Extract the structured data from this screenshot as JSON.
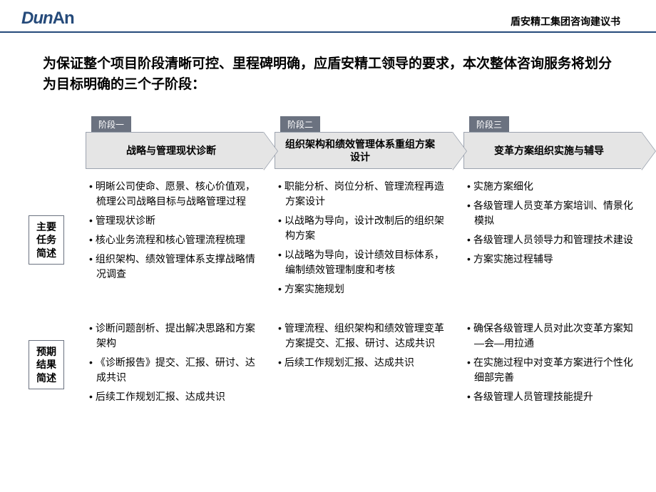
{
  "header": {
    "logo_part1": "Dun",
    "logo_part2": "An",
    "doc_title": "盾安精工集团咨询建议书"
  },
  "main_title": "为保证整个项目阶段清晰可控、里程碑明确，应盾安精工领导的要求，本次整体咨询服务将划分为目标明确的三个子阶段：",
  "phases": [
    {
      "tag": "阶段一",
      "title": "战略与管理现状诊断"
    },
    {
      "tag": "阶段二",
      "title": "组织架构和绩效管理体系重组方案设计"
    },
    {
      "tag": "阶段三",
      "title": "变革方案组织实施与辅导"
    }
  ],
  "row_labels": {
    "tasks": "主要任务简述",
    "results": "预期结果简述"
  },
  "tasks": {
    "phase1": [
      "明晰公司使命、愿景、核心价值观，梳理公司战略目标与战略管理过程",
      "管理现状诊断",
      "核心业务流程和核心管理流程梳理",
      "组织架构、绩效管理体系支撑战略情况调查"
    ],
    "phase2": [
      "职能分析、岗位分析、管理流程再造方案设计",
      "以战略为导向，设计改制后的组织架构方案",
      "以战略为导向，设计绩效目标体系，编制绩效管理制度和考核",
      "方案实施规划"
    ],
    "phase3": [
      "实施方案细化",
      "各级管理人员变革方案培训、情景化模拟",
      "各级管理人员领导力和管理技术建设",
      "方案实施过程辅导"
    ]
  },
  "results": {
    "phase1": [
      "诊断问题剖析、提出解决思路和方案架构",
      "《诊断报告》提交、汇报、研讨、达成共识",
      "后续工作规划汇报、达成共识"
    ],
    "phase2": [
      "管理流程、组织架构和绩效管理变革方案提交、汇报、研讨、达成共识",
      "后续工作规划汇报、达成共识"
    ],
    "phase3": [
      "确保各级管理人员对此次变革方案知—会—用拉通",
      "在实施过程中对变革方案进行个性化细部完善",
      "各级管理人员管理技能提升"
    ]
  },
  "colors": {
    "header_border": "#254a7a",
    "logo_color": "#254a7a",
    "phase_tag_bg": "#6b7280",
    "phase_arrow_bg": "#e5e5e5",
    "phase_arrow_border": "#9ca3af",
    "row_label_border": "#6b7280"
  }
}
